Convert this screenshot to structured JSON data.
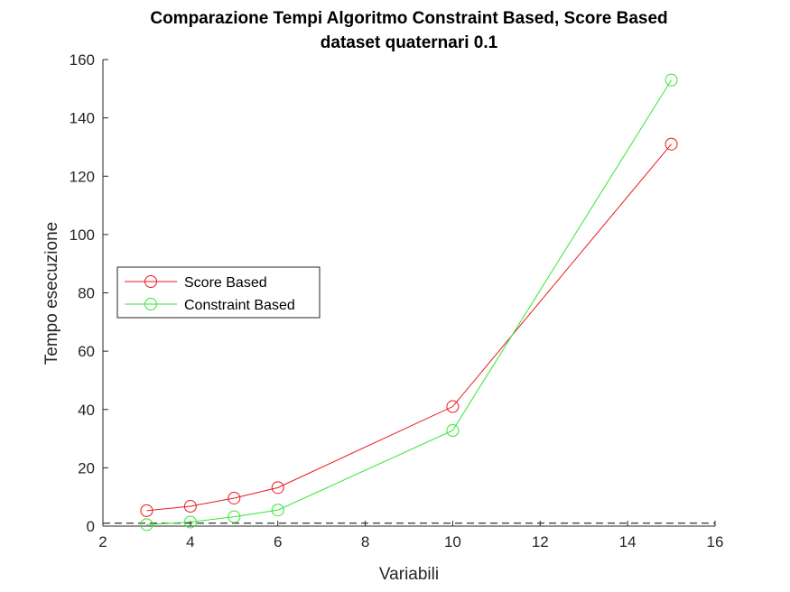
{
  "chart_data": {
    "type": "line",
    "title": "Comparazione Tempi Algoritmo Constraint Based, Score Based",
    "subtitle": "dataset quaternari 0.1",
    "xlabel": "Variabili",
    "ylabel": "Tempo esecuzione",
    "xlim": [
      2,
      16
    ],
    "ylim": [
      0,
      160
    ],
    "xticks": [
      2,
      4,
      6,
      8,
      10,
      12,
      14,
      16
    ],
    "yticks": [
      0,
      20,
      40,
      60,
      80,
      100,
      120,
      140,
      160
    ],
    "x": [
      3,
      4,
      5,
      6,
      10,
      15
    ],
    "series": [
      {
        "name": "Score Based",
        "color": "#e8171c",
        "marker": "circle",
        "values": [
          5.3,
          6.8,
          9.6,
          13.2,
          41.0,
          131.0
        ]
      },
      {
        "name": "Constraint Based",
        "color": "#33e633",
        "marker": "circle",
        "values": [
          0.5,
          1.4,
          3.2,
          5.5,
          32.8,
          153.0
        ]
      }
    ],
    "reference_line": {
      "y": 1,
      "style": "dashed",
      "color": "#000000"
    },
    "grid": false,
    "legend_position": "middle-left"
  }
}
